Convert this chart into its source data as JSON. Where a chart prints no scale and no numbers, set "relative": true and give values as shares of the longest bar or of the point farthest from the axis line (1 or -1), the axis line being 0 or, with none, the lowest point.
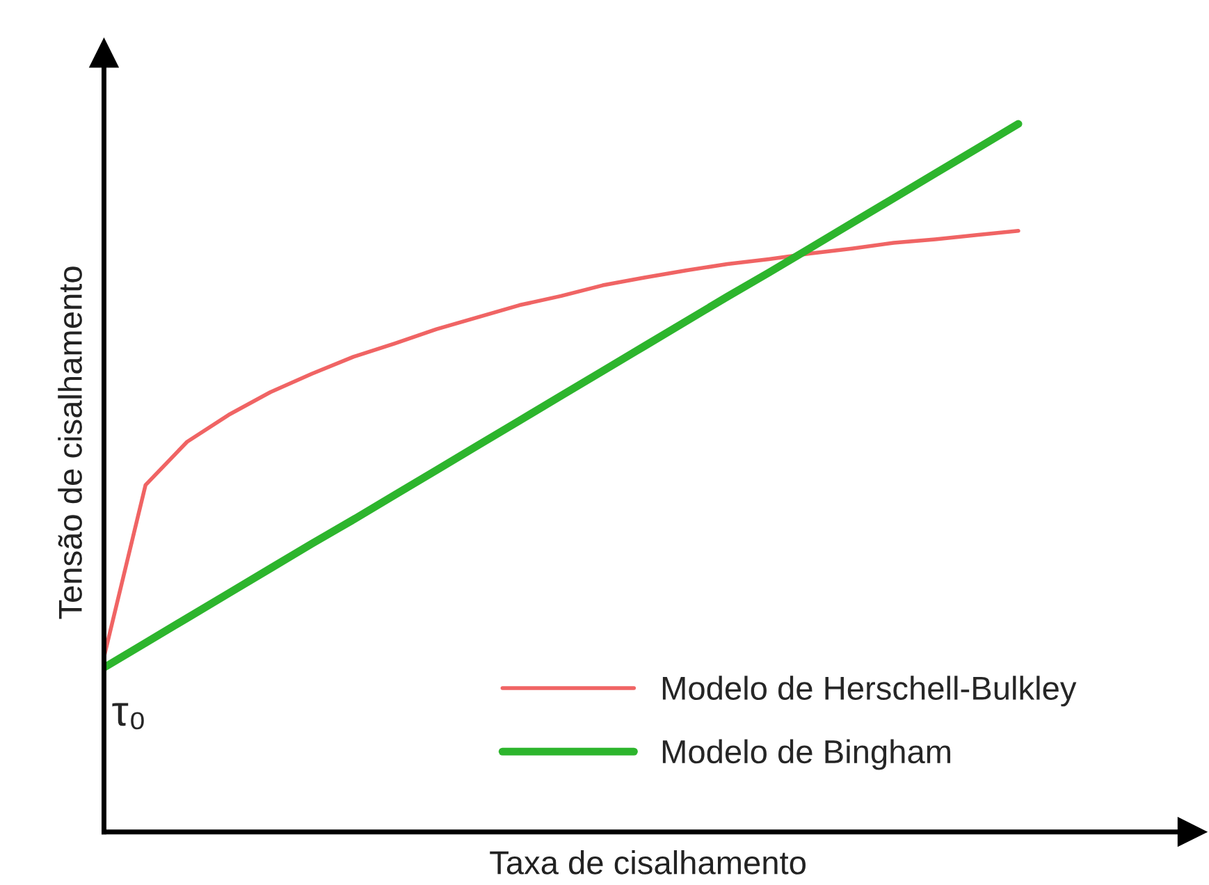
{
  "chart_data": {
    "type": "line",
    "relative": true,
    "xlabel": "Taxa de cisalhamento",
    "ylabel": "Tensão de cisalhamento",
    "categories": [
      null,
      null,
      null,
      null,
      null,
      null,
      null,
      null,
      null,
      null,
      null,
      null,
      null,
      null,
      null,
      null,
      null,
      null,
      null,
      null,
      null,
      null,
      null
    ],
    "legend": "bottom right",
    "marker": "none",
    "line_style": "solid",
    "annotations": [
      "τ₀"
    ],
    "series": [
      {
        "name": "Modelo de Herschell-Bulkley",
        "color": "#f06464",
        "values": [
          0.247,
          0.49,
          0.551,
          0.589,
          0.621,
          0.647,
          0.671,
          0.69,
          0.71,
          0.727,
          0.744,
          0.757,
          0.772,
          0.783,
          0.793,
          0.802,
          0.809,
          0.817,
          0.824,
          0.832,
          0.837,
          0.843,
          0.849
        ]
      },
      {
        "name": "Modelo de Bingham",
        "color": "#2db52d",
        "values": [
          0.232,
          0.267,
          0.302,
          0.337,
          0.372,
          0.407,
          0.441,
          0.476,
          0.511,
          0.546,
          0.581,
          0.616,
          0.651,
          0.686,
          0.721,
          0.756,
          0.79,
          0.825,
          0.86,
          0.895,
          0.93,
          0.965,
          1.0
        ]
      }
    ]
  }
}
